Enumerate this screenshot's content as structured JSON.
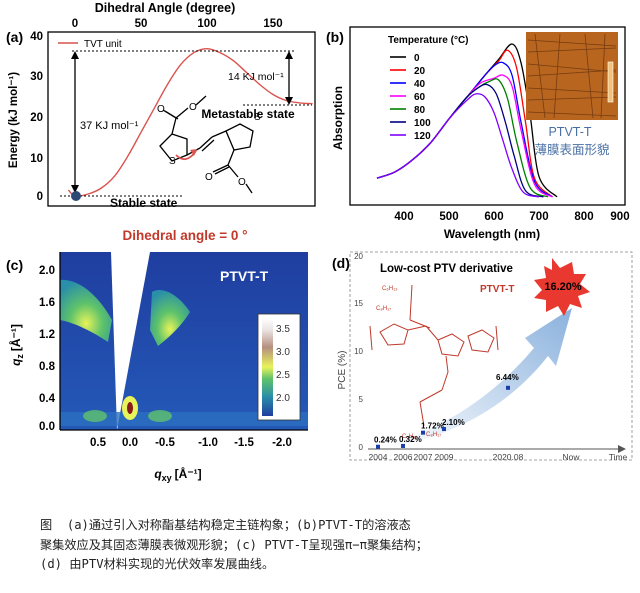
{
  "panels": {
    "a": {
      "label": "(a)",
      "top_axis_title": "Dihedral Angle (degree)",
      "top_ticks": [
        "0",
        "50",
        "100",
        "150"
      ],
      "y_title": "Energy (kJ mol⁻¹)",
      "y_ticks": [
        "0",
        "10",
        "20",
        "30",
        "40"
      ],
      "legend": "TVT unit",
      "barrier_large": "37 KJ mol⁻¹",
      "barrier_small": "14 KJ mol⁻¹",
      "metastable": "Metastable state",
      "stable": "Stable state",
      "bottom_note": "Dihedral angle = 0 °",
      "curve_color": "#d9534f"
    },
    "b": {
      "label": "(b)",
      "legend_title": "Temperature (°C)",
      "x_title": "Wavelength (nm)",
      "y_title": "Absorption",
      "x_ticks": [
        "400",
        "500",
        "600",
        "700",
        "800",
        "900"
      ],
      "inset_label": "PTVT-T",
      "inset_caption": "薄膜表面形貌"
    },
    "c": {
      "label": "(c)",
      "name": "PTVT-T",
      "y_title": "q",
      "y_sub": "z",
      "y_unit": "[Å⁻¹]",
      "x_title": "q",
      "x_sub": "xy",
      "x_unit": "[Å⁻¹]",
      "y_ticks": [
        "2.0",
        "1.6",
        "1.2",
        "0.8",
        "0.4",
        "0.0"
      ],
      "x_ticks": [
        "0.5",
        "0.0",
        "-0.5",
        "-1.0",
        "-1.5",
        "-2.0"
      ],
      "colorbar_ticks": [
        "3.5",
        "3.0",
        "2.5",
        "2.0"
      ]
    },
    "d": {
      "label": "(d)",
      "headline": "Low-cost PTV derivative",
      "polymer": "PTVT-T",
      "star_value": "16.20%",
      "y_title": "PCE (%)",
      "y_ticks": [
        "0",
        "5",
        "10",
        "15",
        "20"
      ],
      "x_ticks": [
        "2004",
        "2006",
        "2007",
        "2009",
        "2020.08",
        "Now",
        "Time"
      ],
      "points": [
        "0.24%",
        "0.32%",
        "1.72%",
        "2.10%",
        "6.44%"
      ]
    }
  },
  "chart_data": [
    {
      "type": "line",
      "title": "",
      "xlabel": "Dihedral Angle (degree)",
      "ylabel": "Energy (kJ mol⁻¹)",
      "xlim": [
        -10,
        180
      ],
      "ylim": [
        -3,
        40
      ],
      "series": [
        {
          "name": "TVT unit",
          "x": [
            -5,
            0,
            10,
            20,
            30,
            40,
            50,
            60,
            70,
            80,
            90,
            100,
            110,
            120,
            130,
            140,
            150,
            160,
            170,
            180
          ],
          "y": [
            1.5,
            0,
            0.5,
            2,
            5,
            10,
            16,
            22,
            28,
            33,
            36,
            37,
            36,
            34,
            31,
            28,
            25.5,
            24,
            23.4,
            23.2
          ]
        }
      ]
    },
    {
      "type": "line",
      "title": "",
      "xlabel": "Wavelength (nm)",
      "ylabel": "Absorption",
      "xlim": [
        340,
        900
      ],
      "series": [
        {
          "name": "0",
          "color": "#000000",
          "x": [
            340,
            380,
            420,
            460,
            500,
            540,
            580,
            610,
            640,
            660,
            680,
            700,
            740
          ],
          "y": [
            0.14,
            0.18,
            0.26,
            0.37,
            0.52,
            0.66,
            0.8,
            0.9,
            1.0,
            0.88,
            0.55,
            0.15,
            0.02
          ]
        },
        {
          "name": "20",
          "color": "#ff0000",
          "x": [
            340,
            380,
            420,
            460,
            500,
            540,
            580,
            610,
            630,
            650,
            670,
            690,
            730
          ],
          "y": [
            0.14,
            0.18,
            0.26,
            0.37,
            0.52,
            0.66,
            0.8,
            0.89,
            0.96,
            0.85,
            0.5,
            0.14,
            0.02
          ]
        },
        {
          "name": "40",
          "color": "#0000ff",
          "x": [
            340,
            380,
            420,
            460,
            500,
            540,
            580,
            600,
            620,
            640,
            660,
            690,
            730
          ],
          "y": [
            0.14,
            0.18,
            0.26,
            0.37,
            0.52,
            0.66,
            0.8,
            0.86,
            0.88,
            0.8,
            0.5,
            0.12,
            0.02
          ]
        },
        {
          "name": "60",
          "color": "#ff00ff",
          "x": [
            340,
            380,
            420,
            460,
            500,
            540,
            570,
            600,
            620,
            640,
            660,
            690,
            730
          ],
          "y": [
            0.14,
            0.18,
            0.26,
            0.37,
            0.52,
            0.66,
            0.75,
            0.78,
            0.8,
            0.73,
            0.45,
            0.1,
            0.02
          ]
        },
        {
          "name": "80",
          "color": "#008000",
          "x": [
            340,
            380,
            420,
            460,
            500,
            540,
            570,
            590,
            610,
            630,
            650,
            680,
            720
          ],
          "y": [
            0.14,
            0.18,
            0.26,
            0.37,
            0.52,
            0.66,
            0.73,
            0.76,
            0.77,
            0.65,
            0.38,
            0.08,
            0.02
          ]
        },
        {
          "name": "100",
          "color": "#000080",
          "x": [
            340,
            380,
            420,
            460,
            500,
            540,
            565,
            585,
            605,
            625,
            645,
            670,
            710
          ],
          "y": [
            0.14,
            0.18,
            0.26,
            0.37,
            0.52,
            0.66,
            0.72,
            0.74,
            0.68,
            0.5,
            0.28,
            0.06,
            0.02
          ]
        },
        {
          "name": "120",
          "color": "#8000ff",
          "x": [
            340,
            380,
            420,
            460,
            500,
            540,
            560,
            580,
            600,
            620,
            640,
            665,
            700
          ],
          "y": [
            0.14,
            0.18,
            0.26,
            0.37,
            0.52,
            0.64,
            0.68,
            0.66,
            0.56,
            0.38,
            0.2,
            0.05,
            0.02
          ]
        }
      ]
    },
    {
      "type": "heatmap",
      "title": "PTVT-T",
      "xlabel": "q_xy [Å⁻¹]",
      "ylabel": "q_z [Å⁻¹]",
      "xlim": [
        0.8,
        -2.2
      ],
      "ylim": [
        -0.1,
        2.1
      ],
      "colorbar_range": [
        1.8,
        3.7
      ]
    },
    {
      "type": "scatter",
      "title": "",
      "xlabel": "Time",
      "ylabel": "PCE (%)",
      "ylim": [
        0,
        20
      ],
      "categories": [
        "2004",
        "2006",
        "2007",
        "2009",
        "2020.08",
        "Now"
      ],
      "values": [
        0.24,
        0.32,
        1.72,
        2.1,
        6.44,
        16.2
      ]
    }
  ],
  "caption": {
    "line1": "图  (a)通过引入对称酯基结构稳定主链构象；(b)PTVT-T的溶液态",
    "line2": "聚集效应及其固态薄膜表微观形貌；(c) PTVT-T呈现强π−π聚集结构；",
    "line3": "(d) 由PTV材料实现的光伏效率发展曲线。"
  }
}
